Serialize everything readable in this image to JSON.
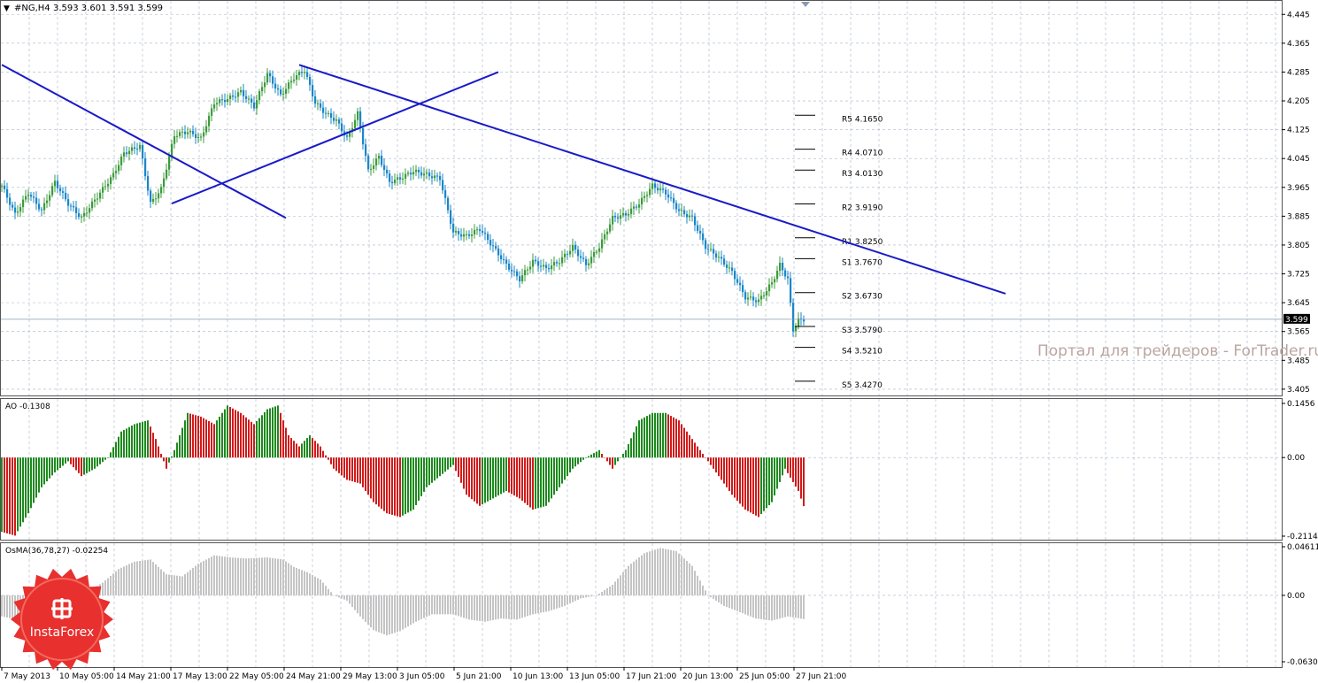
{
  "header": {
    "symbol_label": "#NG,H4",
    "ohlc_label": "3.593 3.601 3.591 3.599",
    "current_price_label": "3.599"
  },
  "watermark": "Портал для трейдеров - ForTrader.ru",
  "logo": {
    "text": "InstaForex",
    "color": "#e8302e"
  },
  "colors": {
    "up_candle": "#3c9b3c",
    "down_candle": "#1a86c8",
    "trendline": "#1a1ac8",
    "ao_up": "#1d8a1d",
    "ao_down": "#d11a1a",
    "osma": "#c4c4c4",
    "grid": "#a8b4c8"
  },
  "x_axis_labels": [
    "7 May 2013",
    "10 May 05:00",
    "14 May 21:00",
    "17 May 13:00",
    "22 May 05:00",
    "24 May 21:00",
    "29 May 13:00",
    "3 Jun 05:00",
    "5 Jun 21:00",
    "10 Jun 13:00",
    "13 Jun 05:00",
    "17 Jun 21:00",
    "20 Jun 13:00",
    "25 Jun 05:00",
    "27 Jun 21:00"
  ],
  "pivots": [
    {
      "label": "R5 4.1650",
      "value": 4.165
    },
    {
      "label": "R4 4.0710",
      "value": 4.071
    },
    {
      "label": "R3 4.0130",
      "value": 4.013
    },
    {
      "label": "R2 3.9190",
      "value": 3.919
    },
    {
      "label": "R1 3.8250",
      "value": 3.825
    },
    {
      "label": "S1 3.7670",
      "value": 3.767
    },
    {
      "label": "S2 3.6730",
      "value": 3.673
    },
    {
      "label": "S3 3.5790",
      "value": 3.579
    },
    {
      "label": "S4 3.5210",
      "value": 3.521
    },
    {
      "label": "S5 3.4270",
      "value": 3.427
    }
  ],
  "chart_data": [
    {
      "type": "candlestick",
      "title": "#NG,H4",
      "ylim": [
        3.39,
        4.48
      ],
      "y_ticks": [
        "4.445",
        "4.365",
        "4.285",
        "4.205",
        "4.125",
        "4.045",
        "3.965",
        "3.885",
        "3.805",
        "3.725",
        "3.645",
        "3.565",
        "3.485",
        "3.405"
      ],
      "current_price": 3.599,
      "close_anchors": [
        [
          0,
          3.97
        ],
        [
          5,
          3.89
        ],
        [
          10,
          3.95
        ],
        [
          15,
          3.9
        ],
        [
          20,
          3.98
        ],
        [
          25,
          3.92
        ],
        [
          30,
          3.88
        ],
        [
          36,
          3.94
        ],
        [
          42,
          4.0
        ],
        [
          46,
          4.06
        ],
        [
          52,
          4.08
        ],
        [
          56,
          3.92
        ],
        [
          60,
          3.96
        ],
        [
          65,
          4.11
        ],
        [
          70,
          4.12
        ],
        [
          75,
          4.1
        ],
        [
          80,
          4.2
        ],
        [
          85,
          4.21
        ],
        [
          90,
          4.23
        ],
        [
          95,
          4.19
        ],
        [
          100,
          4.28
        ],
        [
          105,
          4.22
        ],
        [
          110,
          4.27
        ],
        [
          114,
          4.29
        ],
        [
          118,
          4.2
        ],
        [
          122,
          4.17
        ],
        [
          126,
          4.15
        ],
        [
          130,
          4.1
        ],
        [
          134,
          4.17
        ],
        [
          138,
          4.01
        ],
        [
          142,
          4.05
        ],
        [
          146,
          3.98
        ],
        [
          150,
          3.99
        ],
        [
          155,
          4.01
        ],
        [
          160,
          4.0
        ],
        [
          165,
          3.99
        ],
        [
          170,
          3.84
        ],
        [
          175,
          3.83
        ],
        [
          180,
          3.85
        ],
        [
          185,
          3.8
        ],
        [
          190,
          3.75
        ],
        [
          195,
          3.71
        ],
        [
          200,
          3.76
        ],
        [
          205,
          3.74
        ],
        [
          210,
          3.76
        ],
        [
          215,
          3.8
        ],
        [
          220,
          3.75
        ],
        [
          225,
          3.8
        ],
        [
          230,
          3.88
        ],
        [
          235,
          3.89
        ],
        [
          240,
          3.92
        ],
        [
          245,
          3.97
        ],
        [
          250,
          3.95
        ],
        [
          255,
          3.9
        ],
        [
          260,
          3.88
        ],
        [
          265,
          3.8
        ],
        [
          270,
          3.77
        ],
        [
          275,
          3.73
        ],
        [
          280,
          3.66
        ],
        [
          285,
          3.65
        ],
        [
          290,
          3.7
        ],
        [
          293,
          3.75
        ],
        [
          296,
          3.71
        ],
        [
          298,
          3.57
        ],
        [
          300,
          3.596
        ],
        [
          302,
          3.599
        ]
      ],
      "trendlines": [
        {
          "name": "line-1",
          "x1_bar": 0,
          "y1": 4.305,
          "x2_bar": 107,
          "y2": 3.88
        },
        {
          "name": "line-2",
          "x1_bar": 64,
          "y1": 3.92,
          "x2_bar": 187,
          "y2": 4.285
        },
        {
          "name": "line-3",
          "x1_bar": 112,
          "y1": 4.305,
          "x2_bar": 378,
          "y2": 3.67
        }
      ]
    },
    {
      "type": "bar",
      "title": "AO -0.1308",
      "ylim": [
        -0.2114,
        0.1456
      ],
      "y_ticks": [
        "0.1456",
        "0.00",
        "-0.2114"
      ],
      "anchors": [
        [
          0,
          -0.2
        ],
        [
          5,
          -0.21
        ],
        [
          10,
          -0.15
        ],
        [
          15,
          -0.08
        ],
        [
          20,
          -0.04
        ],
        [
          25,
          -0.01
        ],
        [
          30,
          -0.05
        ],
        [
          35,
          -0.03
        ],
        [
          40,
          0.0
        ],
        [
          45,
          0.07
        ],
        [
          50,
          0.09
        ],
        [
          55,
          0.1
        ],
        [
          58,
          0.05
        ],
        [
          62,
          -0.03
        ],
        [
          65,
          0.02
        ],
        [
          70,
          0.12
        ],
        [
          75,
          0.11
        ],
        [
          80,
          0.09
        ],
        [
          85,
          0.14
        ],
        [
          90,
          0.12
        ],
        [
          95,
          0.09
        ],
        [
          100,
          0.13
        ],
        [
          104,
          0.14
        ],
        [
          108,
          0.06
        ],
        [
          112,
          0.03
        ],
        [
          116,
          0.06
        ],
        [
          120,
          0.03
        ],
        [
          125,
          -0.03
        ],
        [
          130,
          -0.06
        ],
        [
          135,
          -0.07
        ],
        [
          140,
          -0.12
        ],
        [
          145,
          -0.15
        ],
        [
          150,
          -0.16
        ],
        [
          155,
          -0.14
        ],
        [
          160,
          -0.08
        ],
        [
          165,
          -0.05
        ],
        [
          170,
          -0.02
        ],
        [
          175,
          -0.1
        ],
        [
          180,
          -0.13
        ],
        [
          185,
          -0.11
        ],
        [
          190,
          -0.09
        ],
        [
          195,
          -0.11
        ],
        [
          200,
          -0.14
        ],
        [
          205,
          -0.13
        ],
        [
          210,
          -0.08
        ],
        [
          215,
          -0.03
        ],
        [
          220,
          0.0
        ],
        [
          225,
          0.02
        ],
        [
          230,
          -0.03
        ],
        [
          235,
          0.02
        ],
        [
          240,
          0.1
        ],
        [
          245,
          0.12
        ],
        [
          250,
          0.12
        ],
        [
          255,
          0.1
        ],
        [
          260,
          0.05
        ],
        [
          265,
          0.0
        ],
        [
          270,
          -0.05
        ],
        [
          275,
          -0.1
        ],
        [
          280,
          -0.14
        ],
        [
          285,
          -0.16
        ],
        [
          290,
          -0.12
        ],
        [
          295,
          -0.03
        ],
        [
          300,
          -0.09
        ],
        [
          302,
          -0.1308
        ]
      ]
    },
    {
      "type": "histogram",
      "title": "OsMA(36,78,27) -0.02254",
      "ylim": [
        -0.06302,
        0.04611
      ],
      "y_ticks": [
        "0.04611",
        "0.00",
        "-0.06302"
      ],
      "anchors": [
        [
          0,
          -0.02
        ],
        [
          10,
          -0.025
        ],
        [
          18,
          -0.02
        ],
        [
          25,
          -0.005
        ],
        [
          30,
          0.0
        ],
        [
          38,
          0.012
        ],
        [
          44,
          0.025
        ],
        [
          50,
          0.032
        ],
        [
          56,
          0.034
        ],
        [
          62,
          0.02
        ],
        [
          68,
          0.018
        ],
        [
          74,
          0.03
        ],
        [
          80,
          0.038
        ],
        [
          86,
          0.036
        ],
        [
          92,
          0.035
        ],
        [
          100,
          0.036
        ],
        [
          106,
          0.034
        ],
        [
          110,
          0.027
        ],
        [
          115,
          0.022
        ],
        [
          120,
          0.015
        ],
        [
          125,
          0.0
        ],
        [
          130,
          -0.005
        ],
        [
          135,
          -0.02
        ],
        [
          140,
          -0.033
        ],
        [
          145,
          -0.038
        ],
        [
          150,
          -0.034
        ],
        [
          156,
          -0.025
        ],
        [
          162,
          -0.018
        ],
        [
          170,
          -0.018
        ],
        [
          176,
          -0.023
        ],
        [
          182,
          -0.025
        ],
        [
          188,
          -0.022
        ],
        [
          194,
          -0.023
        ],
        [
          200,
          -0.018
        ],
        [
          206,
          -0.015
        ],
        [
          212,
          -0.01
        ],
        [
          218,
          -0.003
        ],
        [
          224,
          0.0
        ],
        [
          230,
          0.01
        ],
        [
          236,
          0.028
        ],
        [
          242,
          0.04
        ],
        [
          248,
          0.045
        ],
        [
          254,
          0.042
        ],
        [
          260,
          0.028
        ],
        [
          266,
          0.0
        ],
        [
          272,
          -0.01
        ],
        [
          278,
          -0.016
        ],
        [
          284,
          -0.022
        ],
        [
          290,
          -0.024
        ],
        [
          296,
          -0.02
        ],
        [
          302,
          -0.02254
        ]
      ]
    }
  ]
}
